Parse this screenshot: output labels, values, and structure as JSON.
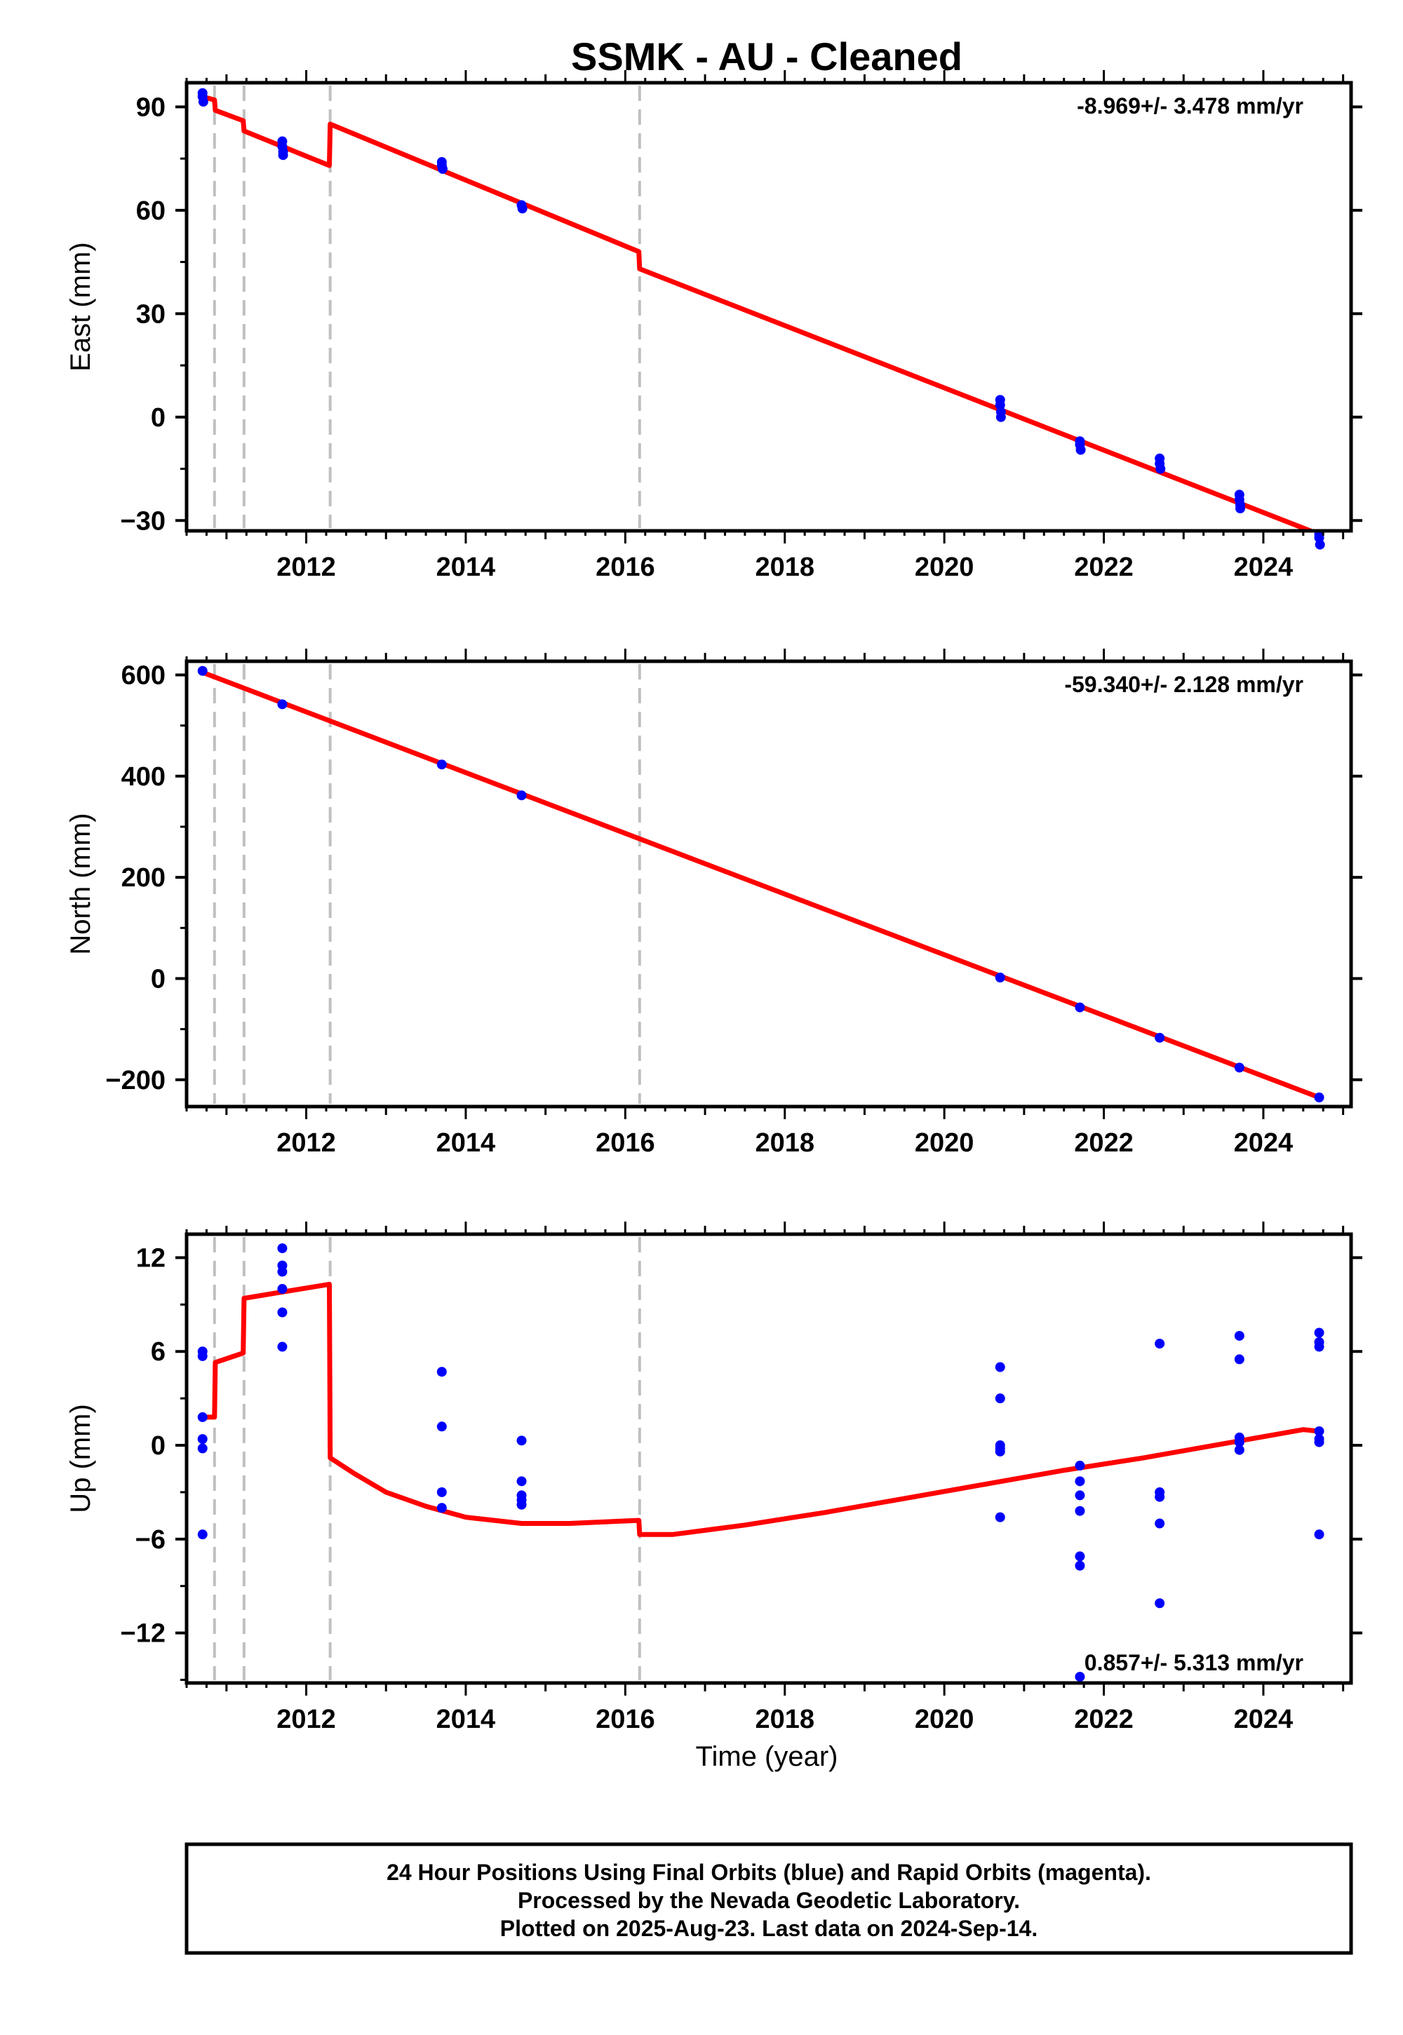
{
  "title": "SSMK  - AU - Cleaned",
  "x_axis": {
    "label": "Time (year)",
    "range": [
      2010.5,
      2025.1
    ],
    "ticks": [
      2012,
      2014,
      2016,
      2018,
      2020,
      2022,
      2024
    ]
  },
  "breaks": [
    2010.85,
    2011.22,
    2012.3,
    2016.18
  ],
  "colors": {
    "final_orbits": "#0000ff",
    "model": "#ff0000",
    "breaks": "#c0c0c0",
    "frame": "#000000"
  },
  "chart_data": [
    {
      "type": "scatter",
      "panel": "east",
      "ylabel": "East (mm)",
      "ylim": [
        -33,
        97
      ],
      "yticks": [
        -30,
        0,
        30,
        60,
        90
      ],
      "ytick_labels": [
        "−30",
        "0",
        "30",
        "60",
        "90"
      ],
      "rate_label": "-8.969+/- 3.478 mm/yr",
      "points": [
        [
          2010.7,
          94
        ],
        [
          2010.7,
          93
        ],
        [
          2010.71,
          91.5
        ],
        [
          2011.7,
          80
        ],
        [
          2011.7,
          78.5
        ],
        [
          2011.71,
          77
        ],
        [
          2011.71,
          76
        ],
        [
          2013.7,
          74
        ],
        [
          2013.7,
          73
        ],
        [
          2013.71,
          72
        ],
        [
          2014.7,
          61.5
        ],
        [
          2014.71,
          60.5
        ],
        [
          2020.7,
          5
        ],
        [
          2020.7,
          3.5
        ],
        [
          2020.71,
          1.5
        ],
        [
          2020.71,
          0
        ],
        [
          2021.7,
          -7
        ],
        [
          2021.7,
          -8
        ],
        [
          2021.71,
          -9.5
        ],
        [
          2022.7,
          -12
        ],
        [
          2022.7,
          -13.5
        ],
        [
          2022.71,
          -15
        ],
        [
          2023.7,
          -22.5
        ],
        [
          2023.7,
          -24
        ],
        [
          2023.71,
          -25.5
        ],
        [
          2023.71,
          -26.5
        ],
        [
          2024.7,
          -34
        ],
        [
          2024.7,
          -35
        ],
        [
          2024.71,
          -37
        ]
      ],
      "model": [
        [
          2010.7,
          93
        ],
        [
          2010.85,
          92
        ],
        [
          2010.86,
          89
        ],
        [
          2011.21,
          86
        ],
        [
          2011.22,
          83
        ],
        [
          2012.29,
          73
        ],
        [
          2012.3,
          85
        ],
        [
          2016.17,
          48
        ],
        [
          2016.18,
          43
        ],
        [
          2024.7,
          -34
        ]
      ]
    },
    {
      "type": "scatter",
      "panel": "north",
      "ylabel": "North (mm)",
      "ylim": [
        -253,
        627
      ],
      "yticks": [
        -200,
        0,
        200,
        400,
        600
      ],
      "ytick_labels": [
        "−200",
        "0",
        "200",
        "400",
        "600"
      ],
      "rate_label": "-59.340+/- 2.128 mm/yr",
      "points": [
        [
          2010.7,
          608
        ],
        [
          2011.7,
          542
        ],
        [
          2013.7,
          423
        ],
        [
          2014.7,
          362
        ],
        [
          2020.7,
          2
        ],
        [
          2021.7,
          -57
        ],
        [
          2022.7,
          -117
        ],
        [
          2023.7,
          -176
        ],
        [
          2024.7,
          -235
        ]
      ],
      "model": [
        [
          2010.7,
          605
        ],
        [
          2024.7,
          -235
        ]
      ]
    },
    {
      "type": "scatter",
      "panel": "up",
      "ylabel": "Up (mm)",
      "ylim": [
        -15.2,
        13.5
      ],
      "yticks": [
        -12,
        -6,
        0,
        6,
        12
      ],
      "ytick_labels": [
        "−12",
        "−6",
        "0",
        "6",
        "12"
      ],
      "rate_label": "0.857+/- 5.313 mm/yr",
      "points": [
        [
          2010.7,
          6
        ],
        [
          2010.7,
          5.7
        ],
        [
          2010.7,
          1.8
        ],
        [
          2010.7,
          0.4
        ],
        [
          2010.7,
          -0.2
        ],
        [
          2010.7,
          -5.7
        ],
        [
          2011.7,
          12.6
        ],
        [
          2011.7,
          11.5
        ],
        [
          2011.7,
          11.1
        ],
        [
          2011.7,
          10
        ],
        [
          2011.7,
          8.5
        ],
        [
          2011.7,
          6.3
        ],
        [
          2013.7,
          4.7
        ],
        [
          2013.7,
          1.2
        ],
        [
          2013.7,
          -3
        ],
        [
          2013.7,
          -4
        ],
        [
          2014.7,
          0.3
        ],
        [
          2014.7,
          -2.3
        ],
        [
          2014.7,
          -3.2
        ],
        [
          2014.7,
          -3.5
        ],
        [
          2014.7,
          -3.8
        ],
        [
          2020.7,
          5
        ],
        [
          2020.7,
          3
        ],
        [
          2020.7,
          0
        ],
        [
          2020.7,
          -0.2
        ],
        [
          2020.7,
          -0.4
        ],
        [
          2020.7,
          -4.6
        ],
        [
          2021.7,
          -1.3
        ],
        [
          2021.7,
          -2.3
        ],
        [
          2021.7,
          -3.2
        ],
        [
          2021.7,
          -4.2
        ],
        [
          2021.7,
          -7.1
        ],
        [
          2021.7,
          -7.7
        ],
        [
          2021.7,
          -14.8
        ],
        [
          2022.7,
          6.5
        ],
        [
          2022.7,
          -3
        ],
        [
          2022.7,
          -3.3
        ],
        [
          2022.7,
          -5
        ],
        [
          2022.7,
          -10.1
        ],
        [
          2023.7,
          7
        ],
        [
          2023.7,
          5.5
        ],
        [
          2023.7,
          0.5
        ],
        [
          2023.7,
          0.2
        ],
        [
          2023.7,
          -0.3
        ],
        [
          2024.7,
          7.2
        ],
        [
          2024.7,
          6.6
        ],
        [
          2024.7,
          6.3
        ],
        [
          2024.7,
          0.9
        ],
        [
          2024.7,
          0.4
        ],
        [
          2024.7,
          0.2
        ],
        [
          2024.7,
          -5.7
        ]
      ],
      "model": [
        [
          2010.7,
          1.8
        ],
        [
          2010.85,
          1.8
        ],
        [
          2010.86,
          5.3
        ],
        [
          2011.21,
          5.9
        ],
        [
          2011.22,
          9.4
        ],
        [
          2012.29,
          10.3
        ],
        [
          2012.3,
          -0.8
        ],
        [
          2012.6,
          -1.8
        ],
        [
          2013.0,
          -3
        ],
        [
          2013.5,
          -3.9
        ],
        [
          2014.0,
          -4.6
        ],
        [
          2014.7,
          -5
        ],
        [
          2015.3,
          -5
        ],
        [
          2016.17,
          -4.8
        ],
        [
          2016.18,
          -5.7
        ],
        [
          2016.6,
          -5.7
        ],
        [
          2017.5,
          -5.1
        ],
        [
          2018.5,
          -4.3
        ],
        [
          2019.5,
          -3.4
        ],
        [
          2020.5,
          -2.5
        ],
        [
          2021.5,
          -1.6
        ],
        [
          2022.5,
          -0.8
        ],
        [
          2023.5,
          0.1
        ],
        [
          2024.5,
          1.0
        ],
        [
          2024.7,
          0.9
        ]
      ]
    }
  ],
  "footer": {
    "line1": "24 Hour Positions Using Final Orbits (blue) and Rapid Orbits (magenta).",
    "line2": "Processed by the Nevada Geodetic Laboratory.",
    "line3": "Plotted on 2025-Aug-23. Last data on 2024-Sep-14."
  }
}
